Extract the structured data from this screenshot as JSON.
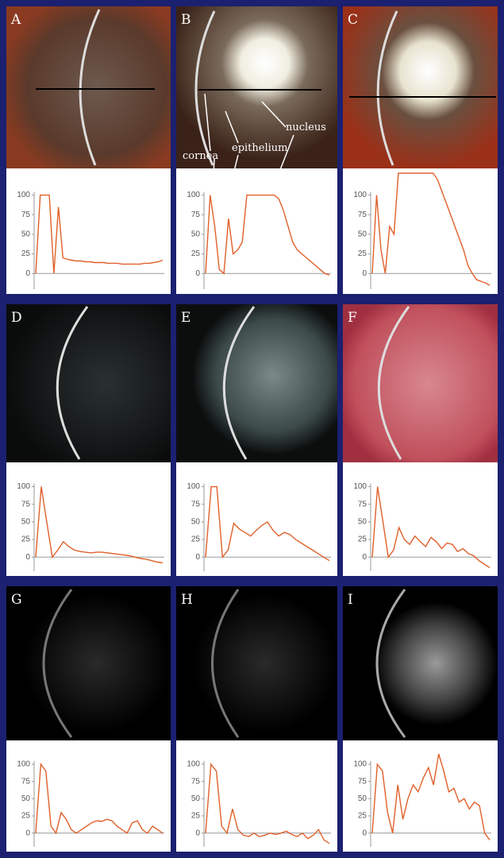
{
  "chart_data": [
    {
      "type": "line",
      "label": "A",
      "color": "#e0602a",
      "ylim": [
        -20,
        130
      ],
      "yticks": [
        0,
        25,
        50,
        75,
        100
      ],
      "values": [
        0,
        100,
        100,
        100,
        0,
        85,
        20,
        18,
        17,
        16,
        16,
        15,
        15,
        14,
        14,
        14,
        13,
        13,
        13,
        12,
        12,
        12,
        12,
        12,
        13,
        13,
        14,
        15,
        17
      ]
    },
    {
      "type": "line",
      "label": "B",
      "color": "#e0602a",
      "ylim": [
        -20,
        130
      ],
      "yticks": [
        0,
        25,
        50,
        75,
        100
      ],
      "annotations": [
        "cornea",
        "epithelium",
        "nucleus"
      ],
      "values": [
        0,
        100,
        60,
        5,
        0,
        70,
        25,
        30,
        40,
        100,
        100,
        100,
        100,
        100,
        100,
        100,
        95,
        80,
        60,
        40,
        30,
        25,
        20,
        15,
        10,
        5,
        0,
        -2
      ]
    },
    {
      "type": "line",
      "label": "C",
      "color": "#e0602a",
      "ylim": [
        -20,
        130
      ],
      "yticks": [
        0,
        25,
        50,
        75,
        100
      ],
      "values": [
        0,
        100,
        30,
        0,
        60,
        50,
        128,
        128,
        128,
        128,
        128,
        128,
        128,
        128,
        128,
        120,
        105,
        90,
        75,
        60,
        45,
        30,
        10,
        0,
        -8,
        -10,
        -12,
        -15
      ]
    },
    {
      "type": "line",
      "label": "D",
      "color": "#e0602a",
      "ylim": [
        -20,
        130
      ],
      "yticks": [
        0,
        25,
        50,
        75,
        100
      ],
      "values": [
        0,
        100,
        50,
        0,
        10,
        22,
        15,
        10,
        8,
        7,
        6,
        7,
        7,
        6,
        5,
        4,
        3,
        2,
        0,
        -2,
        -3,
        -5,
        -7,
        -8
      ]
    },
    {
      "type": "line",
      "label": "E",
      "color": "#e0602a",
      "ylim": [
        -20,
        130
      ],
      "yticks": [
        0,
        25,
        50,
        75,
        100
      ],
      "values": [
        0,
        100,
        100,
        0,
        10,
        48,
        40,
        35,
        30,
        38,
        45,
        50,
        38,
        30,
        35,
        32,
        25,
        20,
        15,
        10,
        5,
        0,
        -5
      ]
    },
    {
      "type": "line",
      "label": "F",
      "color": "#e0602a",
      "ylim": [
        -20,
        130
      ],
      "yticks": [
        0,
        25,
        50,
        75,
        100
      ],
      "values": [
        0,
        100,
        50,
        0,
        10,
        42,
        25,
        18,
        30,
        22,
        15,
        28,
        22,
        12,
        20,
        18,
        8,
        12,
        5,
        2,
        -5,
        -10,
        -15
      ]
    },
    {
      "type": "line",
      "label": "G",
      "color": "#e0602a",
      "ylim": [
        -20,
        130
      ],
      "yticks": [
        0,
        25,
        50,
        75,
        100
      ],
      "values": [
        0,
        100,
        90,
        10,
        0,
        30,
        20,
        5,
        0,
        5,
        10,
        15,
        18,
        17,
        20,
        18,
        10,
        5,
        0,
        15,
        18,
        5,
        0,
        10,
        5,
        0
      ]
    },
    {
      "type": "line",
      "label": "H",
      "color": "#e0602a",
      "ylim": [
        -20,
        130
      ],
      "yticks": [
        0,
        25,
        50,
        75,
        100
      ],
      "values": [
        0,
        100,
        90,
        10,
        0,
        35,
        5,
        -3,
        -5,
        0,
        -5,
        -3,
        0,
        -2,
        0,
        3,
        -2,
        -5,
        0,
        -8,
        -3,
        5,
        -10,
        -15
      ]
    },
    {
      "type": "line",
      "label": "I",
      "color": "#e0602a",
      "ylim": [
        -20,
        130
      ],
      "yticks": [
        0,
        25,
        50,
        75,
        100
      ],
      "values": [
        0,
        100,
        90,
        30,
        0,
        70,
        20,
        50,
        70,
        60,
        80,
        95,
        70,
        115,
        90,
        60,
        65,
        45,
        50,
        35,
        45,
        40,
        0,
        -10
      ]
    }
  ]
}
